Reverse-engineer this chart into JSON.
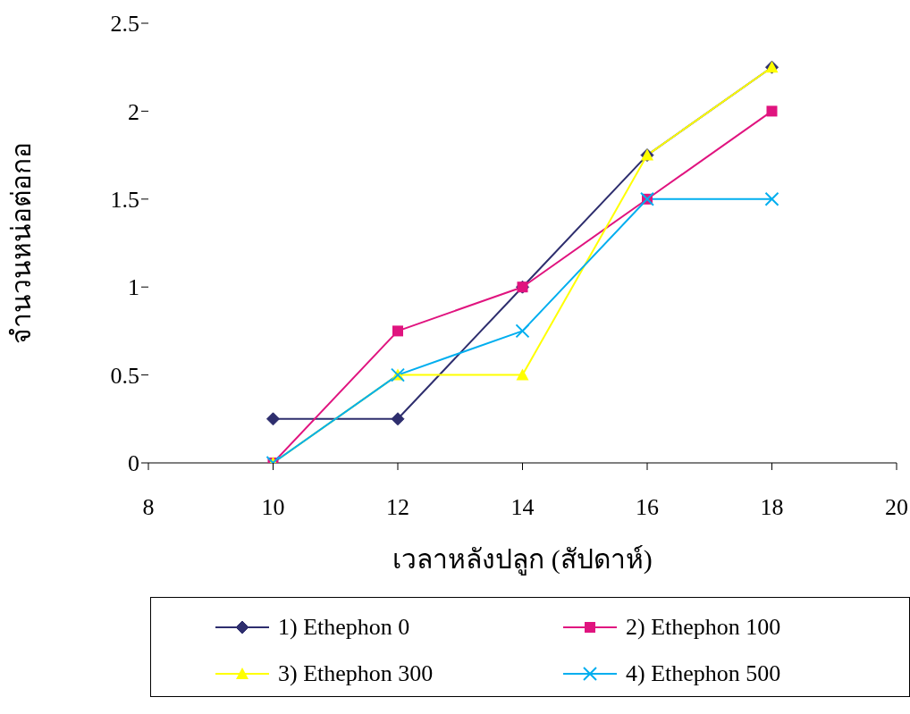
{
  "chart_data": {
    "type": "line",
    "xlabel": "เวลาหลังปลูก (สัปดาห์)",
    "ylabel": "จำนวนหน่อต่อกอ",
    "x": [
      10,
      12,
      14,
      16,
      18
    ],
    "xlim": [
      8,
      20
    ],
    "xticks": [
      8,
      10,
      12,
      14,
      16,
      18,
      20
    ],
    "ylim": [
      0,
      2.5
    ],
    "yticks": [
      0,
      0.5,
      1,
      1.5,
      2,
      2.5
    ],
    "grid": false,
    "legend": "bottom",
    "series": [
      {
        "name": "1) Ethephon 0",
        "color": "#2e2e6e",
        "marker": "diamond",
        "values": [
          0.25,
          0.25,
          1,
          1.75,
          2.25
        ]
      },
      {
        "name": "2) Ethephon 100",
        "color": "#e0147f",
        "marker": "square",
        "values": [
          0,
          0.75,
          1,
          1.5,
          2
        ]
      },
      {
        "name": "3) Ethephon 300",
        "color": "#ffff00",
        "marker": "triangle",
        "values": [
          0,
          0.5,
          0.5,
          1.75,
          2.25
        ]
      },
      {
        "name": "4) Ethephon 500",
        "color": "#00aeef",
        "marker": "cross",
        "values": [
          0,
          0.5,
          0.75,
          1.5,
          1.5
        ]
      }
    ]
  }
}
